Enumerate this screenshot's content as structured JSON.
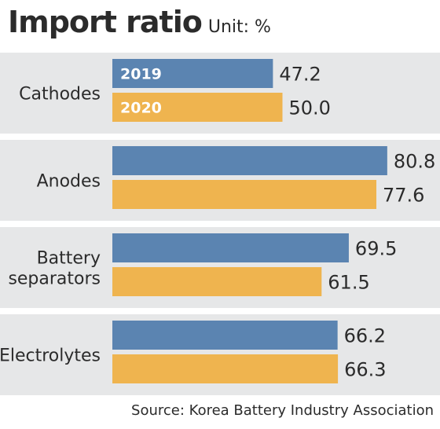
{
  "header": {
    "title": "Import ratio",
    "unit": "Unit: %"
  },
  "source": "Source: Korea Battery Industry Association",
  "colors": {
    "series_2019": "#5b84b1",
    "series_2020": "#efb44f",
    "band": "#e6e7e8",
    "text": "#2b2b2b"
  },
  "chart_data": {
    "type": "bar",
    "orientation": "horizontal",
    "title": "Import ratio",
    "unit": "%",
    "categories": [
      "Cathodes",
      "Anodes",
      "Battery separators",
      "Electrolytes"
    ],
    "category_lines": [
      [
        "Cathodes"
      ],
      [
        "Anodes"
      ],
      [
        "Battery",
        "separators"
      ],
      [
        "Electrolytes"
      ]
    ],
    "series": [
      {
        "name": "2019",
        "values": [
          47.2,
          80.8,
          69.5,
          66.2
        ]
      },
      {
        "name": "2020",
        "values": [
          50.0,
          77.6,
          61.5,
          66.3
        ]
      }
    ],
    "value_labels": [
      [
        "47.2",
        "80.8",
        "69.5",
        "66.2"
      ],
      [
        "50.0",
        "77.6",
        "61.5",
        "66.3"
      ]
    ],
    "legend": "inside first bars",
    "grid": false
  }
}
